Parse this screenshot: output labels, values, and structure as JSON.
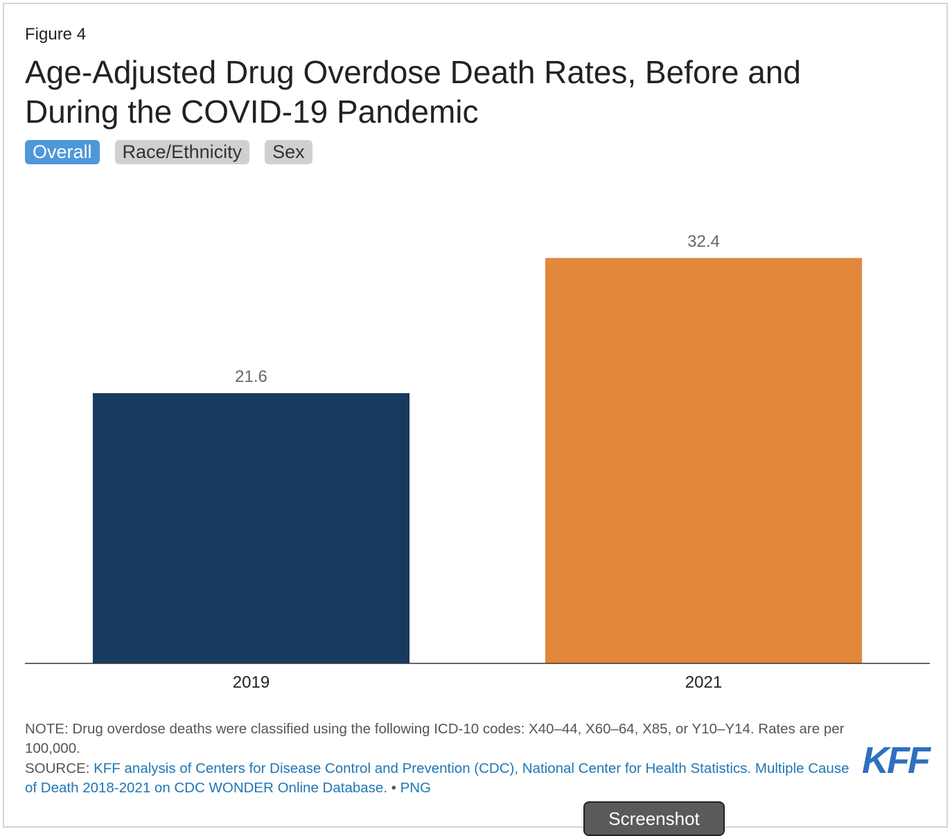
{
  "figure_label": "Figure 4",
  "title": "Age-Adjusted Drug Overdose Death Rates, Before and During the COVID-19 Pandemic",
  "tabs": [
    {
      "label": "Overall",
      "active": true
    },
    {
      "label": "Race/Ethnicity",
      "active": false
    },
    {
      "label": "Sex",
      "active": false
    }
  ],
  "chart_data": {
    "type": "bar",
    "categories": [
      "2019",
      "2021"
    ],
    "values": [
      21.6,
      32.4
    ],
    "value_labels": [
      "21.6",
      "32.4"
    ],
    "colors": [
      "#173a5e",
      "#e3883b"
    ],
    "ylim": [
      0,
      40
    ],
    "title": "",
    "xlabel": "",
    "ylabel": "",
    "grid": false
  },
  "note": "NOTE: Drug overdose deaths were classified using the following ICD-10 codes: X40–44, X60–64, X85, or Y10–Y14. Rates are per 100,000.",
  "source": {
    "prefix": "SOURCE: ",
    "link_text": "KFF analysis of Centers for Disease Control and Prevention (CDC), National Center for Health Statistics. Multiple Cause of Death 2018-2021 on CDC WONDER Online Database.",
    "separator": " • ",
    "png_link": "PNG"
  },
  "logo_text": "KFF",
  "screenshot_button": "Screenshot",
  "colors": {
    "accent": "#4e97da",
    "link": "#1f77b4",
    "logo": "#2e6fc0"
  }
}
